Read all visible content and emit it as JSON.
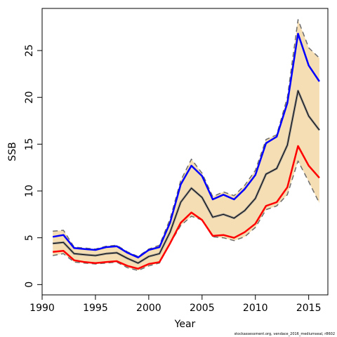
{
  "chart_data": {
    "type": "line",
    "title": "",
    "xlabel": "Year",
    "ylabel": "SSB",
    "xlim": [
      1990,
      2016.8
    ],
    "ylim": [
      -1.1,
      29.5
    ],
    "x_ticks": [
      1990,
      1995,
      2000,
      2005,
      2010,
      2015
    ],
    "y_ticks": [
      0,
      5,
      10,
      15,
      20,
      25
    ],
    "grid": false,
    "legend": "none",
    "footnote": "stockassessment.org, vendace_2016_mediumseal, r8602",
    "x": [
      1991,
      1992,
      1993,
      1994,
      1995,
      1996,
      1997,
      1998,
      1999,
      2000,
      2001,
      2002,
      2003,
      2004,
      2005,
      2006,
      2007,
      2008,
      2009,
      2010,
      2011,
      2012,
      2013,
      2014,
      2015,
      2016
    ],
    "series": [
      {
        "role": "upper",
        "values": [
          5.7,
          5.8,
          4.0,
          3.9,
          3.8,
          4.1,
          4.2,
          3.5,
          3.0,
          3.8,
          4.2,
          7.0,
          11.1,
          13.4,
          11.9,
          9.4,
          9.9,
          9.5,
          10.6,
          12.2,
          15.5,
          16.0,
          20.0,
          28.3,
          25.3,
          24.2
        ],
        "color": "#6e6e6e"
      },
      {
        "role": "lower",
        "values": [
          3.1,
          3.3,
          2.4,
          2.3,
          2.2,
          2.3,
          2.4,
          1.8,
          1.5,
          2.0,
          2.3,
          4.4,
          6.3,
          7.3,
          6.9,
          5.1,
          5.0,
          4.7,
          5.1,
          6.1,
          8.0,
          8.4,
          9.6,
          13.2,
          11.0,
          8.7
        ],
        "color": "#6e6e6e"
      },
      {
        "role": "blue",
        "values": [
          5.1,
          5.3,
          3.9,
          3.8,
          3.7,
          4.0,
          4.1,
          3.4,
          2.9,
          3.7,
          4.0,
          6.6,
          10.7,
          12.7,
          11.6,
          9.1,
          9.6,
          9.1,
          10.2,
          11.7,
          15.1,
          15.8,
          19.4,
          26.8,
          23.4,
          21.7
        ],
        "color": "#0000ff"
      },
      {
        "role": "median",
        "values": [
          4.4,
          4.5,
          3.3,
          3.2,
          3.1,
          3.3,
          3.4,
          2.8,
          2.3,
          3.0,
          3.3,
          5.6,
          8.8,
          10.3,
          9.3,
          7.2,
          7.5,
          7.1,
          7.9,
          9.2,
          11.8,
          12.4,
          14.9,
          20.7,
          18.0,
          16.5
        ],
        "color": "#000000"
      },
      {
        "role": "red",
        "values": [
          3.5,
          3.6,
          2.6,
          2.4,
          2.3,
          2.4,
          2.5,
          2.0,
          1.7,
          2.2,
          2.4,
          4.4,
          6.6,
          7.7,
          6.9,
          5.2,
          5.3,
          5.0,
          5.6,
          6.5,
          8.4,
          8.8,
          10.4,
          14.8,
          12.7,
          11.4
        ],
        "color": "#ff0000"
      }
    ],
    "band_color": "#f5deb3"
  }
}
